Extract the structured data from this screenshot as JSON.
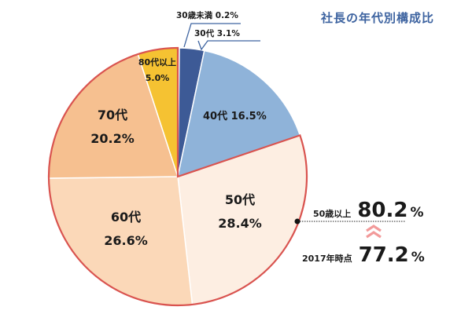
{
  "chart_data": {
    "type": "pie",
    "title": "社長の年代別構成比",
    "start_angle": "12 o'clock, clockwise",
    "categories": [
      "30歳未満",
      "30代",
      "40代",
      "50代",
      "60代",
      "70代",
      "80代以上"
    ],
    "values": [
      0.2,
      3.1,
      16.5,
      28.4,
      26.6,
      20.2,
      5.0
    ],
    "unit": "%",
    "colors": [
      "#2f4a80",
      "#3d5a96",
      "#8fb3d9",
      "#fdeee2",
      "#fbd8b8",
      "#f6c090",
      "#f5c232"
    ],
    "highlight_group": {
      "label": "50歳以上",
      "members": [
        "50代",
        "60代",
        "70代",
        "80代以上"
      ],
      "value": 80.2,
      "outline_color": "#d9534f"
    },
    "comparison": {
      "label": "2017年時点",
      "value": 77.2
    },
    "legend": "none (direct labels)"
  },
  "title": "社長の年代別構成比",
  "labels": {
    "under30": "30歳未満 0.2%",
    "age30": "30代 3.1%",
    "age40": "40代 16.5%",
    "age50": {
      "line1": "50代",
      "line2": "28.4%"
    },
    "age60": {
      "line1": "60代",
      "line2": "26.6%"
    },
    "age70": {
      "line1": "70代",
      "line2": "20.2%"
    },
    "age80": {
      "line1": "80代以上",
      "line2": "5.0%"
    }
  },
  "summary": {
    "current": {
      "label": "50歳以上",
      "value": "80.2",
      "unit": "%"
    },
    "previous": {
      "label": "2017年時点",
      "value": "77.2",
      "unit": "%"
    },
    "arrow_color": "#f29a9a"
  },
  "colors": {
    "title": "#3d63a0",
    "callout_line": "#3d63a0",
    "outline": "#d9534f"
  }
}
